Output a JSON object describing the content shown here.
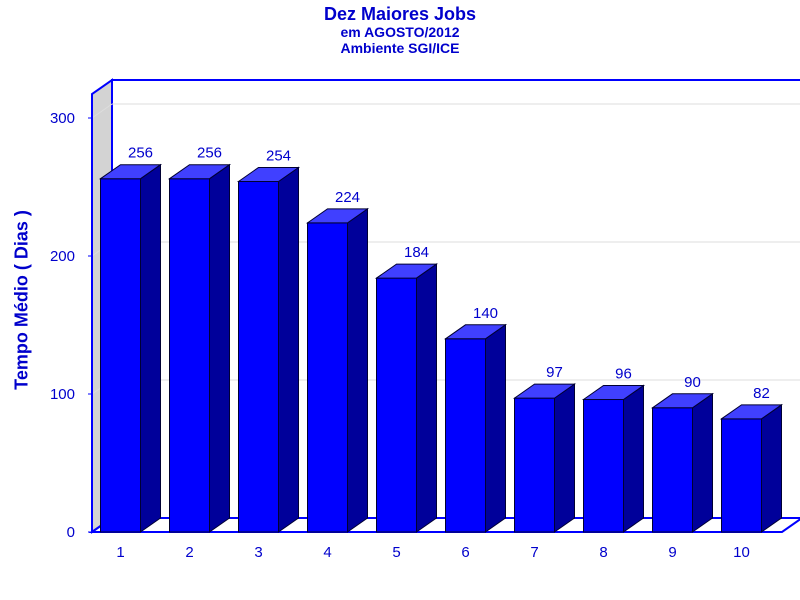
{
  "chart_data": {
    "type": "bar",
    "title": "Dez Maiores Jobs",
    "subtitle": [
      "em AGOSTO/2012",
      "Ambiente SGI/ICE"
    ],
    "xlabel": "",
    "ylabel": "Tempo Médio ( Dias )",
    "categories": [
      "1",
      "2",
      "3",
      "4",
      "5",
      "6",
      "7",
      "8",
      "9",
      "10"
    ],
    "values": [
      256,
      256,
      254,
      224,
      184,
      140,
      97,
      96,
      90,
      82
    ],
    "ylim": [
      0,
      300
    ],
    "yticks": [
      0,
      100,
      200,
      300
    ],
    "grid": true,
    "style": "3d",
    "colors": {
      "bar_front": "#0000ff",
      "bar_top": "#4040ff",
      "bar_side": "#00009a",
      "text": "#0000cc",
      "wall": "#d3d3d3"
    }
  }
}
